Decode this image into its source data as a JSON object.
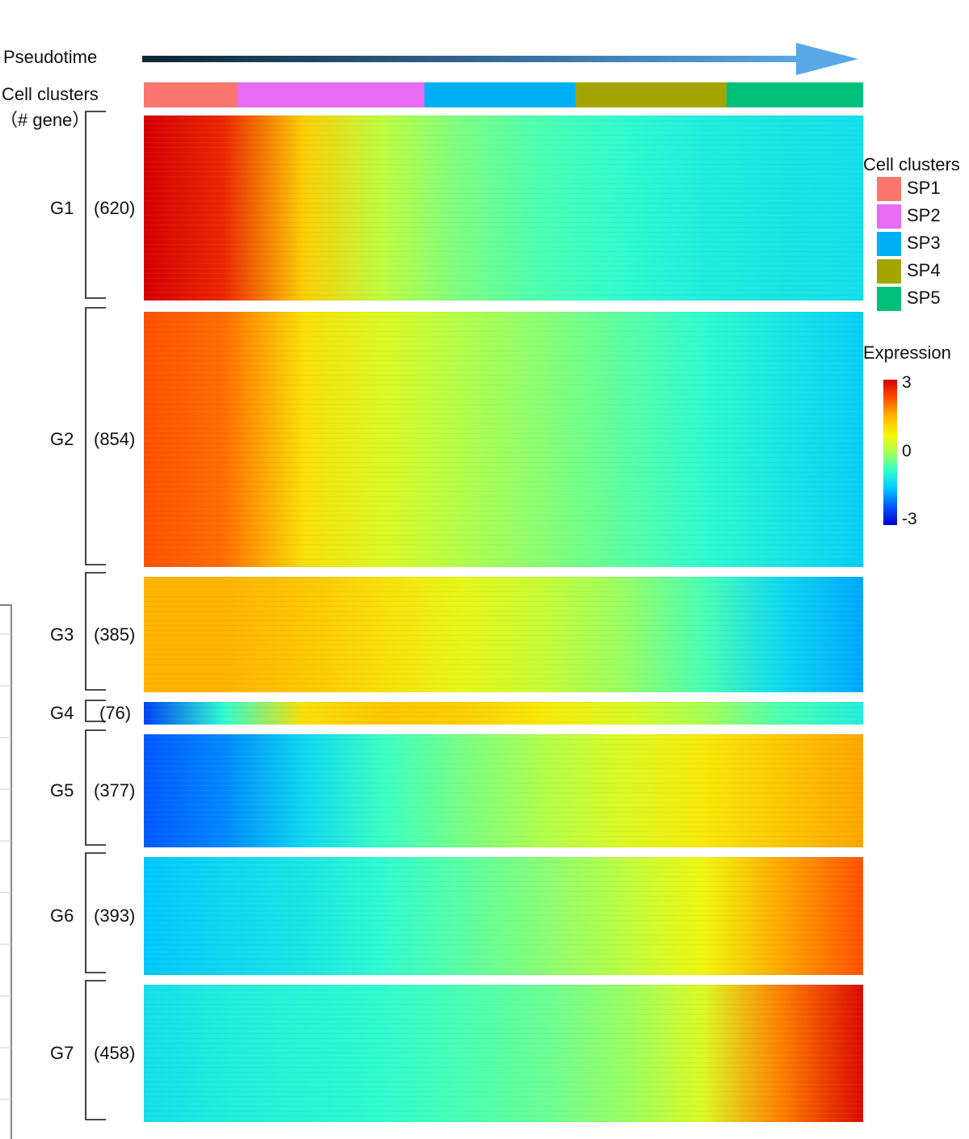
{
  "chart_data": {
    "type": "heatmap",
    "axis_label": "Pseudotime",
    "annotation_label": "Cell clusters",
    "gene_count_label": "（# gene）",
    "cluster_bar": [
      {
        "name": "SP1",
        "fraction": 0.13,
        "color": "#f8766d"
      },
      {
        "name": "SP2",
        "fraction": 0.26,
        "color": "#e76bf3"
      },
      {
        "name": "SP3",
        "fraction": 0.21,
        "color": "#00b0f6"
      },
      {
        "name": "SP4",
        "fraction": 0.21,
        "color": "#a3a500"
      },
      {
        "name": "SP5",
        "fraction": 0.19,
        "color": "#00bf7d"
      }
    ],
    "gene_groups": [
      {
        "name": "G1",
        "count_label": "(620)",
        "count": 620,
        "profile": [
          3,
          2.6,
          1.2,
          0.2,
          -0.3,
          -0.6,
          -0.8,
          -1.0,
          -1.1,
          -1.2
        ]
      },
      {
        "name": "G2",
        "count_label": "(854)",
        "count": 854,
        "profile": [
          2.2,
          2.0,
          1.0,
          0.5,
          0.1,
          -0.2,
          -0.5,
          -0.8,
          -1.1,
          -1.4
        ]
      },
      {
        "name": "G3",
        "count_label": "(385)",
        "count": 385,
        "profile": [
          1.5,
          1.5,
          1.3,
          1.0,
          0.6,
          0.3,
          -0.1,
          -0.6,
          -1.3,
          -1.7
        ]
      },
      {
        "name": "G4",
        "count_label": "(76)",
        "count": 76,
        "profile": [
          -2.4,
          -0.8,
          1.0,
          1.3,
          1.2,
          0.9,
          0.5,
          0.0,
          -0.6,
          -1.0
        ]
      },
      {
        "name": "G5",
        "count_label": "(377)",
        "count": 377,
        "profile": [
          -2.2,
          -1.9,
          -1.3,
          -0.7,
          -0.3,
          0.1,
          0.5,
          0.9,
          1.3,
          1.6
        ]
      },
      {
        "name": "G6",
        "count_label": "(393)",
        "count": 393,
        "profile": [
          -1.5,
          -1.3,
          -1.1,
          -0.8,
          -0.5,
          -0.2,
          0.2,
          0.7,
          1.6,
          2.2
        ]
      },
      {
        "name": "G7",
        "count_label": "(458)",
        "count": 458,
        "profile": [
          -1.2,
          -1.0,
          -0.9,
          -0.8,
          -0.6,
          -0.4,
          -0.1,
          0.5,
          1.9,
          2.9
        ]
      }
    ],
    "legend": {
      "cluster_title": "Cell clusters",
      "cluster_items": [
        "SP1",
        "SP2",
        "SP3",
        "SP4",
        "SP5"
      ],
      "expression_title": "Expression",
      "scale_max": "3",
      "scale_mid": "0",
      "scale_min": "-3",
      "range": [
        -3,
        3
      ]
    }
  }
}
